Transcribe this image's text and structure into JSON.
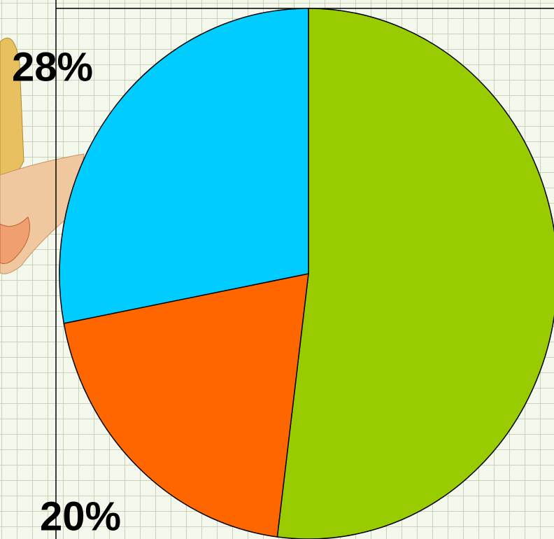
{
  "chart_data": {
    "type": "pie",
    "values": [
      52,
      20,
      28
    ],
    "value_labels": [
      null,
      "20%",
      "28%"
    ],
    "colors": [
      "#99cc00",
      "#ff6600",
      "#00ccff"
    ]
  }
}
